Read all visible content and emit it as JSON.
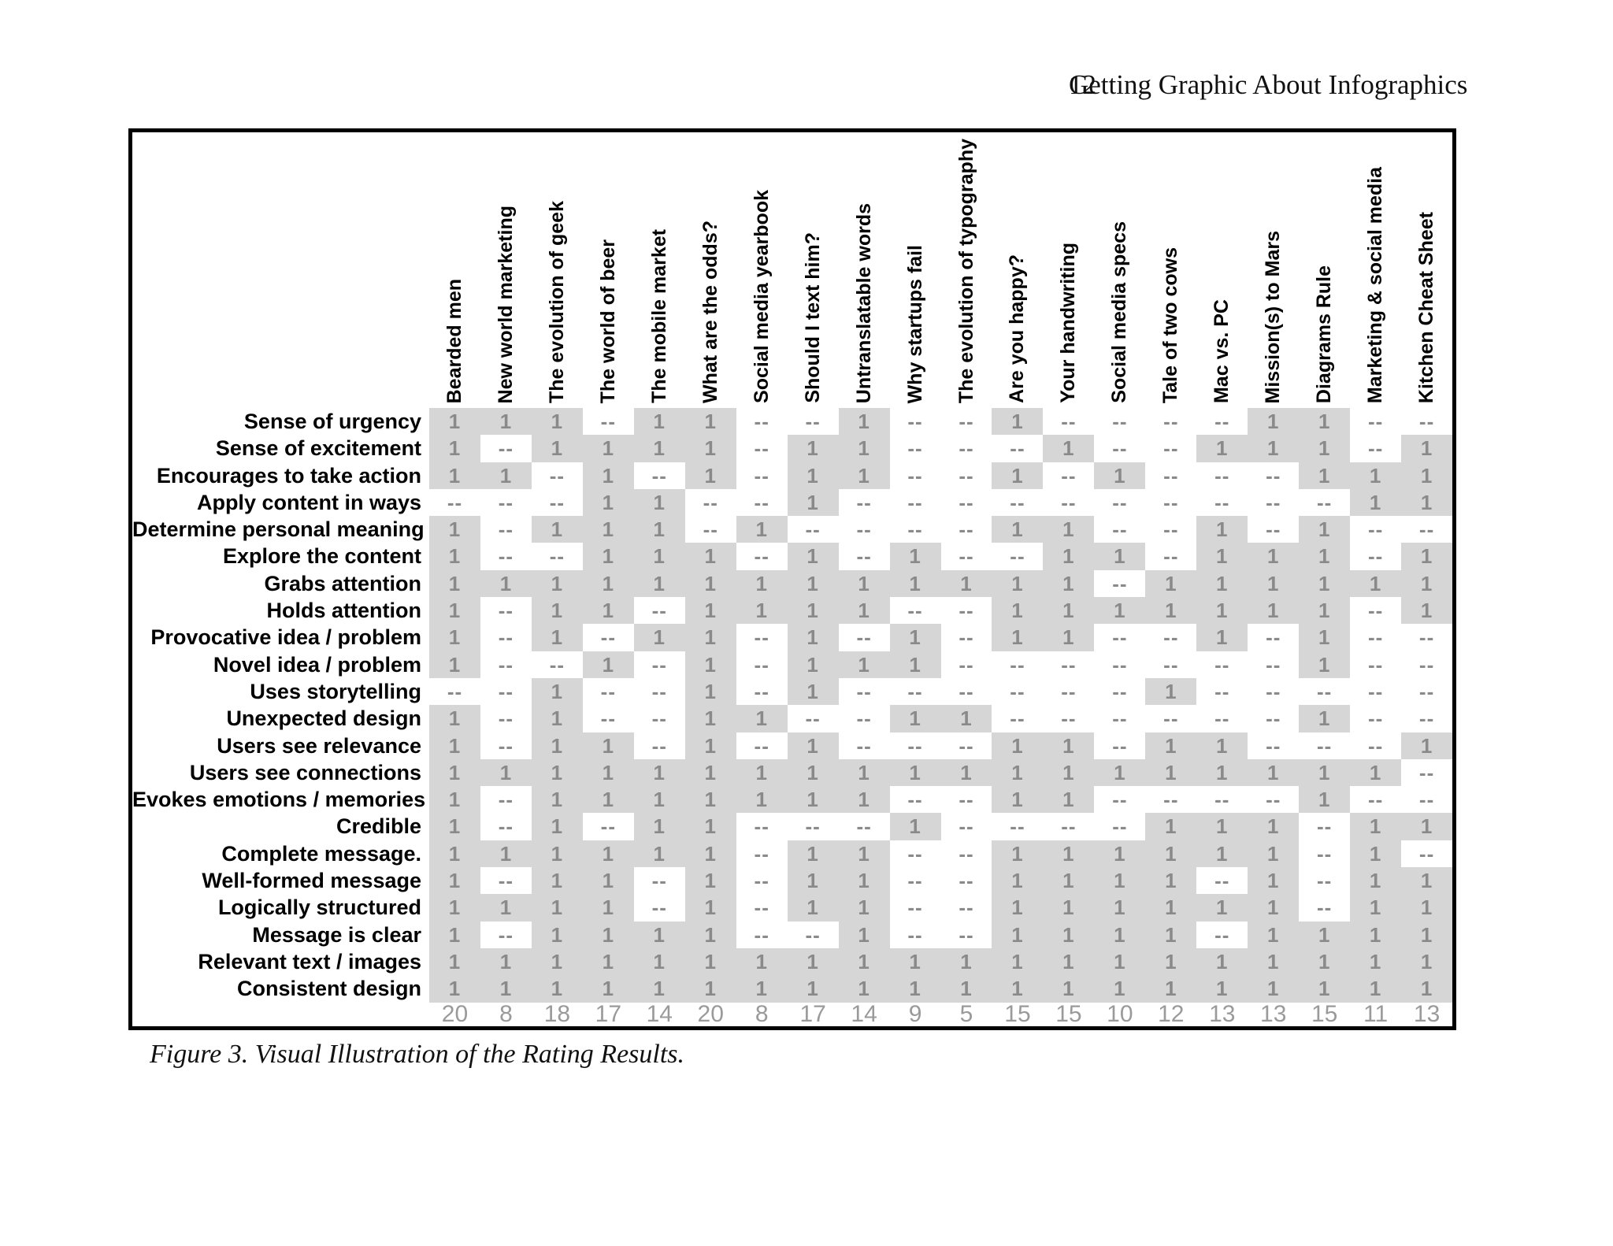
{
  "page": {
    "page_number": "12",
    "running_head": "Getting Graphic About Infographics",
    "caption": "Figure 3. Visual Illustration of the Rating Results."
  },
  "colors": {
    "cell_fill": "#d6d6d6",
    "cell_text": "#8a8a8a",
    "totals_text": "#9a9a9a",
    "frame": "#000000"
  },
  "chart_data": {
    "type": "heatmap",
    "title": "Figure 3. Visual Illustration of the Rating Results.",
    "present_symbol": "1",
    "absent_symbol": "--",
    "legend": "gray cell = rated 1 (criterion present), white cell = -- (absent)",
    "columns": [
      "Bearded men",
      "New world marketing",
      "The evolution of geek",
      "The world of beer",
      "The mobile market",
      "What are the odds?",
      "Social media yearbook",
      "Should I text him?",
      "Untranslatable words",
      "Why startups fail",
      "The evolution of typography",
      "Are you happy?",
      "Your handwriting",
      "Social media specs",
      "Tale of two cows",
      "Mac  vs. PC",
      "Mission(s) to Mars",
      "Diagrams Rule",
      "Marketing & social media",
      "Kitchen Cheat Sheet"
    ],
    "rows": [
      "Sense of urgency",
      "Sense of excitement",
      "Encourages to take action",
      "Apply content in ways",
      "Determine personal meaning",
      "Explore the content",
      "Grabs attention",
      "Holds attention",
      "Provocative idea / problem",
      "Novel idea / problem",
      "Uses storytelling",
      "Unexpected design",
      "Users see relevance",
      "Users see connections",
      "Evokes emotions / memories",
      "Credible",
      "Complete message.",
      "Well-formed message",
      "Logically structured",
      "Message is clear",
      "Relevant text / images",
      "Consistent design"
    ],
    "matrix": [
      [
        1,
        1,
        1,
        0,
        1,
        1,
        0,
        0,
        1,
        0,
        0,
        1,
        0,
        0,
        0,
        0,
        1,
        1,
        0,
        0
      ],
      [
        1,
        0,
        1,
        1,
        1,
        1,
        0,
        1,
        1,
        0,
        0,
        0,
        1,
        0,
        0,
        1,
        1,
        1,
        0,
        1
      ],
      [
        1,
        1,
        0,
        1,
        0,
        1,
        0,
        1,
        1,
        0,
        0,
        1,
        0,
        1,
        0,
        0,
        0,
        1,
        1,
        1
      ],
      [
        0,
        0,
        0,
        1,
        1,
        0,
        0,
        1,
        0,
        0,
        0,
        0,
        0,
        0,
        0,
        0,
        0,
        0,
        1,
        1
      ],
      [
        1,
        0,
        1,
        1,
        1,
        0,
        1,
        0,
        0,
        0,
        0,
        1,
        1,
        0,
        0,
        1,
        0,
        1,
        0,
        0
      ],
      [
        1,
        0,
        0,
        1,
        1,
        1,
        0,
        1,
        0,
        1,
        0,
        0,
        1,
        1,
        0,
        1,
        1,
        1,
        0,
        1
      ],
      [
        1,
        1,
        1,
        1,
        1,
        1,
        1,
        1,
        1,
        1,
        1,
        1,
        1,
        0,
        1,
        1,
        1,
        1,
        1,
        1
      ],
      [
        1,
        0,
        1,
        1,
        0,
        1,
        1,
        1,
        1,
        0,
        0,
        1,
        1,
        1,
        1,
        1,
        1,
        1,
        0,
        1
      ],
      [
        1,
        0,
        1,
        0,
        1,
        1,
        0,
        1,
        0,
        1,
        0,
        1,
        1,
        0,
        0,
        1,
        0,
        1,
        0,
        0
      ],
      [
        1,
        0,
        0,
        1,
        0,
        1,
        0,
        1,
        1,
        1,
        0,
        0,
        0,
        0,
        0,
        0,
        0,
        1,
        0,
        0
      ],
      [
        0,
        0,
        1,
        0,
        0,
        1,
        0,
        1,
        0,
        0,
        0,
        0,
        0,
        0,
        1,
        0,
        0,
        0,
        0,
        0
      ],
      [
        1,
        0,
        1,
        0,
        0,
        1,
        1,
        0,
        0,
        1,
        1,
        0,
        0,
        0,
        0,
        0,
        0,
        1,
        0,
        0
      ],
      [
        1,
        0,
        1,
        1,
        0,
        1,
        0,
        1,
        0,
        0,
        0,
        1,
        1,
        0,
        1,
        1,
        0,
        0,
        0,
        1
      ],
      [
        1,
        1,
        1,
        1,
        1,
        1,
        1,
        1,
        1,
        1,
        1,
        1,
        1,
        1,
        1,
        1,
        1,
        1,
        1,
        0
      ],
      [
        1,
        0,
        1,
        1,
        1,
        1,
        1,
        1,
        1,
        0,
        0,
        1,
        1,
        0,
        0,
        0,
        0,
        1,
        0,
        0
      ],
      [
        1,
        0,
        1,
        0,
        1,
        1,
        0,
        0,
        0,
        1,
        0,
        0,
        0,
        0,
        1,
        1,
        1,
        0,
        1,
        1
      ],
      [
        1,
        1,
        1,
        1,
        1,
        1,
        0,
        1,
        1,
        0,
        0,
        1,
        1,
        1,
        1,
        1,
        1,
        0,
        1,
        0
      ],
      [
        1,
        0,
        1,
        1,
        0,
        1,
        0,
        1,
        1,
        0,
        0,
        1,
        1,
        1,
        1,
        0,
        1,
        0,
        1,
        1
      ],
      [
        1,
        1,
        1,
        1,
        0,
        1,
        0,
        1,
        1,
        0,
        0,
        1,
        1,
        1,
        1,
        1,
        1,
        0,
        1,
        1
      ],
      [
        1,
        0,
        1,
        1,
        1,
        1,
        0,
        0,
        1,
        0,
        0,
        1,
        1,
        1,
        1,
        0,
        1,
        1,
        1,
        1
      ],
      [
        1,
        1,
        1,
        1,
        1,
        1,
        1,
        1,
        1,
        1,
        1,
        1,
        1,
        1,
        1,
        1,
        1,
        1,
        1,
        1
      ],
      [
        1,
        1,
        1,
        1,
        1,
        1,
        1,
        1,
        1,
        1,
        1,
        1,
        1,
        1,
        1,
        1,
        1,
        1,
        1,
        1
      ]
    ],
    "totals": [
      20,
      8,
      18,
      17,
      14,
      20,
      8,
      17,
      14,
      9,
      5,
      15,
      15,
      10,
      12,
      13,
      13,
      15,
      11,
      13
    ]
  }
}
